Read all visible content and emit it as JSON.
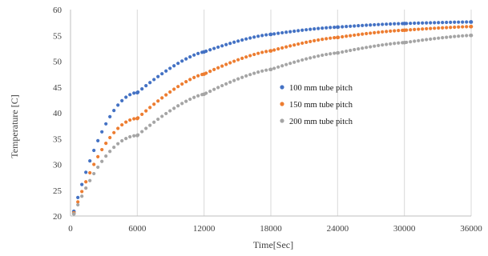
{
  "chart_data": {
    "type": "scatter",
    "xlabel": "Time[Sec]",
    "ylabel": "Temperature [C]",
    "xlim": [
      0,
      36000
    ],
    "ylim": [
      20,
      60
    ],
    "xticks": [
      "0",
      "6000",
      "12000",
      "18000",
      "24000",
      "30000",
      "36000"
    ],
    "yticks": [
      "20",
      "25",
      "30",
      "35",
      "40",
      "45",
      "50",
      "55",
      "60"
    ],
    "grid": "vertical",
    "legend_position": "center-right",
    "x": [
      300,
      6000,
      12000,
      18000,
      24000,
      30000,
      36000
    ],
    "series": [
      {
        "name": "100 mm tube pitch",
        "color": "#4472C4",
        "values": [
          20.9,
          43.9,
          51.8,
          55.2,
          56.6,
          57.3,
          57.6
        ]
      },
      {
        "name": "150 mm tube pitch",
        "color": "#ED7D31",
        "values": [
          20.6,
          38.9,
          47.5,
          52.0,
          54.6,
          56.0,
          56.7
        ]
      },
      {
        "name": "200 mm tube pitch",
        "color": "#A5A5A5",
        "values": [
          20.4,
          35.6,
          43.6,
          48.4,
          51.6,
          53.6,
          55.0
        ]
      }
    ]
  }
}
